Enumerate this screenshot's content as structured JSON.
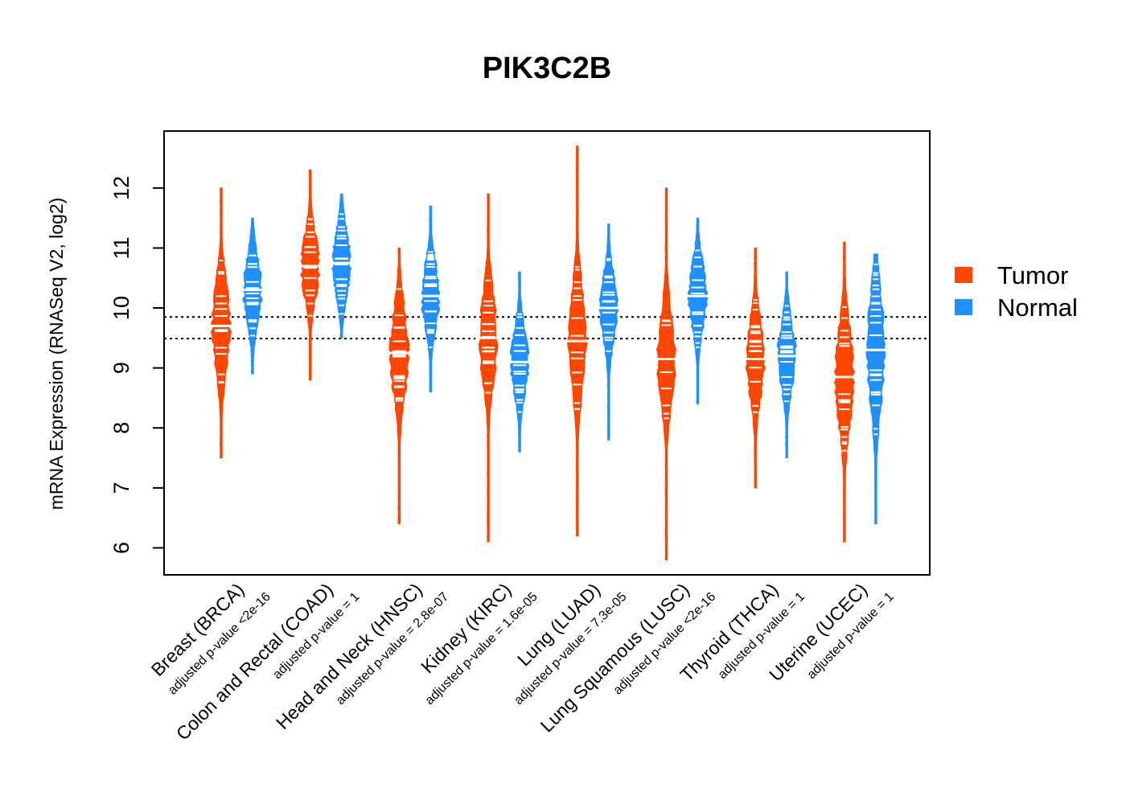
{
  "chart_data": {
    "type": "violin",
    "title": "PIK3C2B",
    "ylabel": "mRNA Expression (RNASeq V2, log2)",
    "xlabel": "",
    "ylim": [
      5.55,
      12.95
    ],
    "yticks": [
      6,
      7,
      8,
      9,
      10,
      11,
      12
    ],
    "reference_lines": [
      9.85,
      9.49
    ],
    "legend": [
      {
        "label": "Tumor",
        "color": "#FF4500"
      },
      {
        "label": "Normal",
        "color": "#1E90FF"
      }
    ],
    "groups": [
      {
        "label": "Breast (BRCA)",
        "pvalue": "adjusted p-value <2e-16",
        "tumor": {
          "median": 9.7,
          "min": 7.5,
          "max": 12.0,
          "q1": 9.3,
          "q3": 10.1
        },
        "normal": {
          "median": 10.3,
          "min": 8.9,
          "max": 11.5,
          "q1": 10.0,
          "q3": 10.6
        }
      },
      {
        "label": "Colon and Rectal (COAD)",
        "pvalue": "adjusted p-value = 1",
        "tumor": {
          "median": 10.7,
          "min": 8.8,
          "max": 12.3,
          "q1": 10.4,
          "q3": 11.0
        },
        "normal": {
          "median": 10.75,
          "min": 9.5,
          "max": 11.9,
          "q1": 10.5,
          "q3": 11.1
        }
      },
      {
        "label": "Head and Neck (HNSC)",
        "pvalue": "adjusted p-value = 2.8e-07",
        "tumor": {
          "median": 9.25,
          "min": 6.4,
          "max": 11.0,
          "q1": 8.9,
          "q3": 9.7
        },
        "normal": {
          "median": 10.2,
          "min": 8.6,
          "max": 11.7,
          "q1": 9.9,
          "q3": 10.5
        }
      },
      {
        "label": "Kidney (KIRC)",
        "pvalue": "adjusted p-value = 1.6e-05",
        "tumor": {
          "median": 9.5,
          "min": 6.1,
          "max": 11.9,
          "q1": 9.1,
          "q3": 9.9
        },
        "normal": {
          "median": 9.1,
          "min": 7.6,
          "max": 10.6,
          "q1": 8.8,
          "q3": 9.4
        }
      },
      {
        "label": "Lung (LUAD)",
        "pvalue": "adjusted p-value = 7.3e-05",
        "tumor": {
          "median": 9.45,
          "min": 6.2,
          "max": 12.7,
          "q1": 9.0,
          "q3": 9.9
        },
        "normal": {
          "median": 10.0,
          "min": 7.8,
          "max": 11.4,
          "q1": 9.7,
          "q3": 10.3
        }
      },
      {
        "label": "Lung Squamous (LUSC)",
        "pvalue": "adjusted p-value <2e-16",
        "tumor": {
          "median": 9.15,
          "min": 5.8,
          "max": 12.0,
          "q1": 8.8,
          "q3": 9.6
        },
        "normal": {
          "median": 10.2,
          "min": 8.4,
          "max": 11.5,
          "q1": 9.9,
          "q3": 10.5
        }
      },
      {
        "label": "Thyroid (THCA)",
        "pvalue": "adjusted p-value = 1",
        "tumor": {
          "median": 9.15,
          "min": 7.0,
          "max": 11.0,
          "q1": 8.8,
          "q3": 9.5
        },
        "normal": {
          "median": 9.2,
          "min": 7.5,
          "max": 10.6,
          "q1": 8.9,
          "q3": 9.5
        }
      },
      {
        "label": "Uterine (UCEC)",
        "pvalue": "adjusted p-value = 1",
        "tumor": {
          "median": 8.85,
          "min": 6.1,
          "max": 11.1,
          "q1": 8.4,
          "q3": 9.3
        },
        "normal": {
          "median": 9.3,
          "min": 6.4,
          "max": 10.9,
          "q1": 8.9,
          "q3": 9.9
        }
      }
    ]
  }
}
